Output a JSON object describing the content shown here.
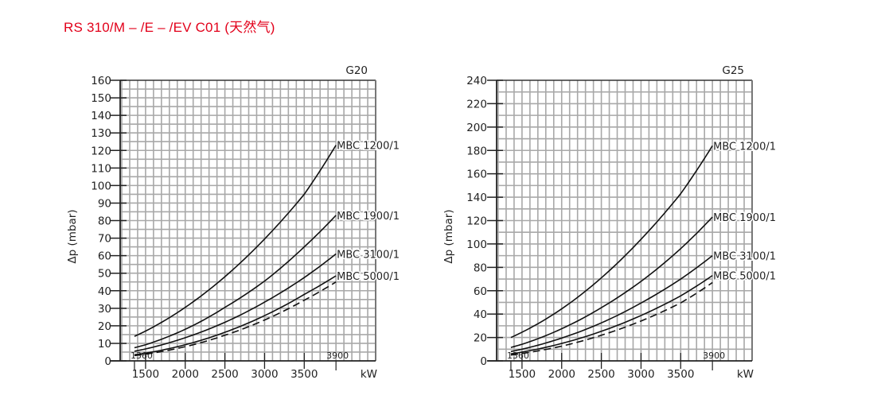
{
  "header": {
    "title": "RS 310/M – /E – /EV C01 (天然气)"
  },
  "colors": {
    "title": "#e2001a",
    "grid": "#a8a8a8",
    "axis": "#222222",
    "curve": "#111111"
  },
  "chart_data": [
    {
      "type": "line",
      "title": "G20",
      "xlabel": "kW",
      "ylabel": "Δp (mbar)",
      "xlim": [
        1180,
        4400
      ],
      "ylim": [
        0,
        160
      ],
      "xticks": [
        1500,
        2000,
        2500,
        3000,
        3500
      ],
      "yticks": [
        0,
        10,
        20,
        30,
        40,
        50,
        60,
        70,
        80,
        90,
        100,
        110,
        120,
        130,
        140,
        150,
        160
      ],
      "range_markers": [
        1360,
        3900
      ],
      "grid": true,
      "x": [
        1360,
        1500,
        2000,
        2500,
        3000,
        3500,
        3900
      ],
      "series": [
        {
          "name": "MBC 1200/1",
          "style": "solid",
          "values": [
            14,
            17,
            30.5,
            48,
            69.5,
            95,
            123
          ]
        },
        {
          "name": "MBC 1900/1",
          "style": "solid",
          "values": [
            7.5,
            9.2,
            18,
            30.5,
            45.5,
            65,
            83
          ]
        },
        {
          "name": "MBC 3100/1",
          "style": "solid",
          "values": [
            5.5,
            6.8,
            13.2,
            22,
            33.5,
            47.5,
            61
          ]
        },
        {
          "name": "MBC 5000/1",
          "style": "solid",
          "values": [
            3.5,
            4.4,
            9.2,
            16.3,
            25.8,
            37.9,
            48.5
          ]
        },
        {
          "name": "",
          "style": "dashed",
          "values": [
            3,
            3.8,
            8.1,
            14.6,
            23.3,
            34.6,
            45
          ]
        }
      ]
    },
    {
      "type": "line",
      "title": "G25",
      "xlabel": "kW",
      "ylabel": "Δp (mbar)",
      "xlim": [
        1180,
        4400
      ],
      "ylim": [
        0,
        240
      ],
      "xticks": [
        1500,
        2000,
        2500,
        3000,
        3500
      ],
      "yticks": [
        0,
        20,
        40,
        60,
        80,
        100,
        120,
        140,
        160,
        180,
        200,
        220,
        240
      ],
      "range_markers": [
        1360,
        3900
      ],
      "grid": true,
      "x": [
        1360,
        1500,
        2000,
        2500,
        3000,
        3500,
        3900
      ],
      "series": [
        {
          "name": "MBC 1200/1",
          "style": "solid",
          "values": [
            20,
            24.5,
            44.5,
            71,
            104,
            143,
            184
          ]
        },
        {
          "name": "MBC 1900/1",
          "style": "solid",
          "values": [
            11.5,
            14.2,
            27.5,
            45.5,
            68,
            96,
            123
          ]
        },
        {
          "name": "MBC 3100/1",
          "style": "solid",
          "values": [
            8,
            10,
            19.5,
            32.5,
            49.5,
            70,
            90
          ]
        },
        {
          "name": "MBC 5000/1",
          "style": "solid",
          "values": [
            6,
            7.5,
            14.9,
            25.3,
            38.8,
            55.6,
            73
          ]
        },
        {
          "name": "",
          "style": "dashed",
          "values": [
            5,
            6.3,
            12.6,
            21.9,
            34.1,
            49.6,
            67
          ]
        }
      ]
    }
  ]
}
